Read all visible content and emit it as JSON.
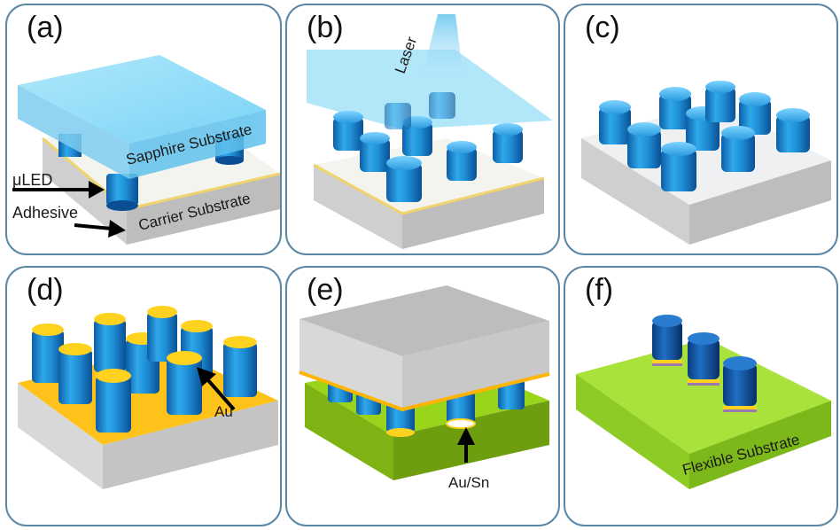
{
  "panels": [
    {
      "label": "(a)",
      "sapphire": "Sapphire Substrate",
      "carrier": "Carrier Substrate",
      "uled": "μLED",
      "adhesive": "Adhesive"
    },
    {
      "label": "(b)",
      "laser": "Laser"
    },
    {
      "label": "(c)"
    },
    {
      "label": "(d)",
      "au": "Au"
    },
    {
      "label": "(e)",
      "ausn": "Au/Sn"
    },
    {
      "label": "(f)",
      "flexible": "Flexible Substrate"
    }
  ]
}
